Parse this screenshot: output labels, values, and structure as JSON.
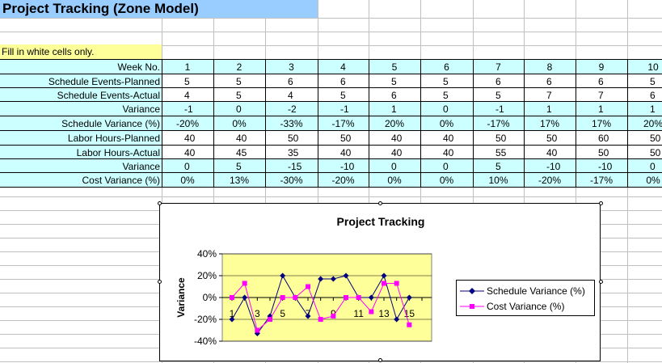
{
  "sheet": {
    "title": "Project Tracking (Zone Model)",
    "hint": "Fill in white cells only."
  },
  "table": {
    "header_label": "Week No.",
    "weeks": [
      "1",
      "2",
      "3",
      "4",
      "5",
      "6",
      "7",
      "8",
      "9",
      "10"
    ],
    "rows": [
      {
        "label": "Schedule Events-Planned",
        "values": [
          "5",
          "5",
          "6",
          "6",
          "5",
          "5",
          "6",
          "6",
          "6",
          "5"
        ],
        "fill": "white"
      },
      {
        "label": "Schedule Events-Actual",
        "values": [
          "4",
          "5",
          "4",
          "5",
          "6",
          "5",
          "5",
          "7",
          "7",
          "6"
        ],
        "fill": "white"
      },
      {
        "label": "Variance",
        "values": [
          "-1",
          "0",
          "-2",
          "-1",
          "1",
          "0",
          "-1",
          "1",
          "1",
          "1"
        ],
        "fill": "cyan"
      },
      {
        "label": "Schedule Variance (%)",
        "values": [
          "-20%",
          "0%",
          "-33%",
          "-17%",
          "20%",
          "0%",
          "-17%",
          "17%",
          "17%",
          "20%"
        ],
        "fill": "cyan"
      },
      {
        "label": "Labor Hours-Planned",
        "values": [
          "40",
          "40",
          "50",
          "50",
          "40",
          "40",
          "50",
          "50",
          "60",
          "50"
        ],
        "fill": "white"
      },
      {
        "label": "Labor Hours-Actual",
        "values": [
          "40",
          "45",
          "35",
          "40",
          "40",
          "40",
          "55",
          "40",
          "50",
          "50"
        ],
        "fill": "white"
      },
      {
        "label": "Variance",
        "values": [
          "0",
          "5",
          "-15",
          "-10",
          "0",
          "0",
          "5",
          "-10",
          "-10",
          "0"
        ],
        "fill": "cyan"
      },
      {
        "label": "Cost Variance (%)",
        "values": [
          "0%",
          "13%",
          "-30%",
          "-20%",
          "0%",
          "0%",
          "10%",
          "-20%",
          "-17%",
          "0%"
        ],
        "fill": "cyan"
      }
    ]
  },
  "colors": {
    "cyan": "#ccffff",
    "title_bg": "#99ccff",
    "hint_bg": "#ffff99",
    "plot_bg": "#ffff99",
    "schedule": "#000080",
    "cost": "#ff00ff"
  },
  "chart_data": {
    "type": "line",
    "title": "Project Tracking",
    "ylabel": "Variance",
    "xlabel": "",
    "ylim": [
      -0.4,
      0.4
    ],
    "yticks": [
      "40%",
      "20%",
      "0%",
      "-20%",
      "-40%"
    ],
    "xtick_labels": [
      "1",
      "3",
      "5",
      "7",
      "9",
      "11",
      "13",
      "15"
    ],
    "x": [
      1,
      2,
      3,
      4,
      5,
      6,
      7,
      8,
      9,
      10,
      11,
      12,
      13,
      14,
      15,
      16
    ],
    "series": [
      {
        "name": "Schedule Variance (%)",
        "values": [
          -0.2,
          0.0,
          -0.33,
          -0.17,
          0.2,
          0.0,
          -0.17,
          0.17,
          0.17,
          0.2,
          0.0,
          0.0,
          0.2,
          -0.2,
          0.0,
          null
        ]
      },
      {
        "name": "Cost Variance (%)",
        "values": [
          0.0,
          0.13,
          -0.3,
          -0.2,
          0.0,
          0.0,
          0.1,
          -0.2,
          -0.17,
          0.0,
          0.0,
          -0.13,
          0.13,
          0.13,
          -0.25,
          null
        ]
      }
    ],
    "legend": "right",
    "grid": true
  }
}
